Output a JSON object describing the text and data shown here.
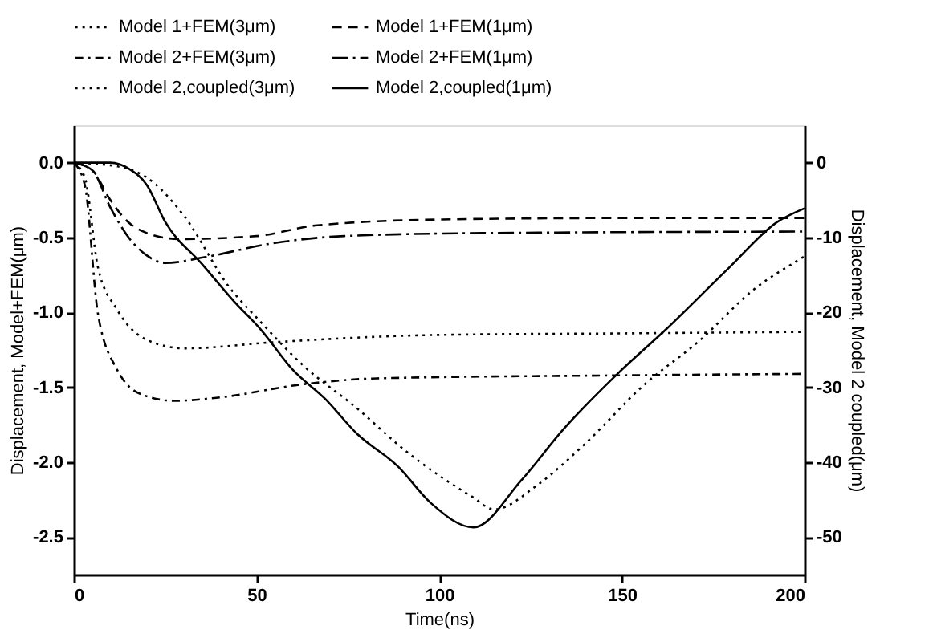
{
  "chart_data": {
    "type": "line",
    "xlabel": "Time(ns)",
    "ylabel": "Displacement, Model+FEM(μm)",
    "y2label": "Displacement, Model 2 coupled(μm)",
    "xlim": [
      0,
      200
    ],
    "xticks": [
      0,
      50,
      100,
      150,
      200
    ],
    "ylim": [
      -2.75,
      0.25
    ],
    "yticks": [
      {
        "value": 0,
        "label": "0.0"
      },
      {
        "value": -0.5,
        "label": "-0.5"
      },
      {
        "value": -1,
        "label": "-1.0"
      },
      {
        "value": -1.5,
        "label": "-1.5"
      },
      {
        "value": -2,
        "label": "-2.0"
      },
      {
        "value": -2.5,
        "label": "-2.5"
      }
    ],
    "y2lim": [
      -55,
      5
    ],
    "y2ticks": [
      0,
      -10,
      -20,
      -30,
      -40,
      -50
    ],
    "grid": false,
    "legend": "top",
    "marker": "none",
    "series": [
      {
        "name": "Model 1+FEM(3μm)",
        "color": "#000000",
        "line_style": "dotted",
        "x": [
          0,
          3,
          6.6,
          11.8,
          20.6,
          30.6,
          54,
          100,
          150,
          200
        ],
        "values": [
          0,
          -0.1,
          -0.7,
          -0.98,
          -1.19,
          -1.24,
          -1.2,
          -1.15,
          -1.14,
          -1.13
        ]
      },
      {
        "name": "Model 1+FEM(1μm)",
        "color": "#000000",
        "line_style": "dashed",
        "x": [
          0,
          5,
          10,
          15,
          20,
          29,
          50,
          66,
          99,
          150,
          200
        ],
        "values": [
          0,
          -0.05,
          -0.25,
          -0.4,
          -0.47,
          -0.51,
          -0.49,
          -0.42,
          -0.38,
          -0.37,
          -0.37
        ]
      },
      {
        "name": "Model 2+FEM(3μm)",
        "color": "#000000",
        "line_style": "dashdot",
        "x": [
          0,
          3,
          6.6,
          11.8,
          18.8,
          27.6,
          39,
          62.6,
          83,
          150,
          200
        ],
        "values": [
          0,
          -0.15,
          -1.01,
          -1.38,
          -1.55,
          -1.59,
          -1.57,
          -1.48,
          -1.44,
          -1.42,
          -1.41
        ]
      },
      {
        "name": "Model 2+FEM(1μm)",
        "color": "#000000",
        "line_style": "longdashdot",
        "x": [
          0,
          5,
          10,
          15,
          20,
          25,
          36,
          54,
          74,
          112,
          200
        ],
        "values": [
          0,
          -0.05,
          -0.3,
          -0.5,
          -0.62,
          -0.67,
          -0.63,
          -0.54,
          -0.49,
          -0.47,
          -0.46
        ]
      },
      {
        "name": "Model 2,coupled(3μm)",
        "color": "#000000",
        "line_style": "dotted",
        "axis": "y2",
        "x": [
          0,
          12,
          20,
          30,
          42.5,
          51,
          62.6,
          77.5,
          90.6,
          109,
          115,
          127,
          140,
          156,
          170.7,
          187,
          198,
          200
        ],
        "values": [
          0,
          -0.5,
          -2,
          -7,
          -16.6,
          -21.2,
          -27,
          -32.8,
          -38.4,
          -44.6,
          -46.3,
          -43,
          -37.5,
          -29.7,
          -24,
          -16.6,
          -13.1,
          -12.5
        ]
      },
      {
        "name": "Model 2,coupled(1μm)",
        "color": "#000000",
        "line_style": "solid",
        "axis": "y2",
        "x": [
          0,
          10,
          15,
          20,
          25,
          35,
          43.8,
          51.2,
          60,
          68.7,
          77.5,
          88.8,
          97.6,
          109.4,
          122.5,
          134,
          148.8,
          162,
          179.4,
          192.6,
          200
        ],
        "values": [
          0,
          0,
          -0.8,
          -3,
          -7.9,
          -13.5,
          -18.5,
          -22.3,
          -27.7,
          -31.5,
          -36.2,
          -40.6,
          -45.4,
          -48.7,
          -42.4,
          -35.6,
          -28.2,
          -22.3,
          -14,
          -7.9,
          -6.1
        ]
      }
    ]
  }
}
